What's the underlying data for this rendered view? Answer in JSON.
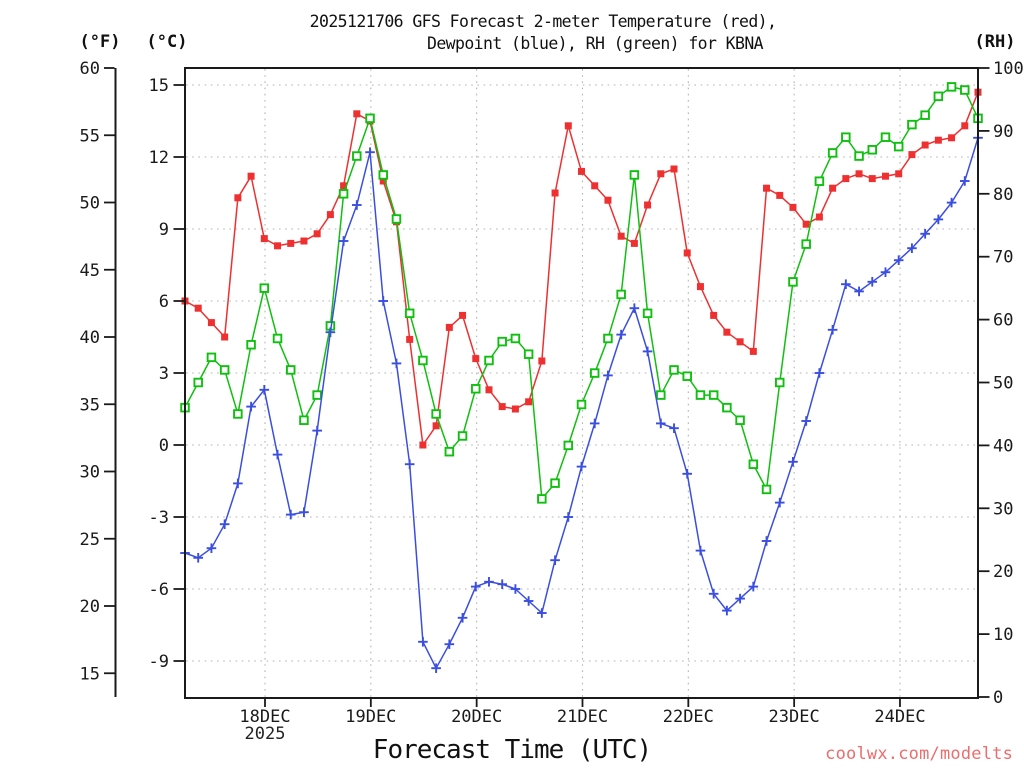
{
  "title": {
    "line1": "2025121706 GFS Forecast 2-meter Temperature (red),",
    "line2": "Dewpoint (blue), RH (green) for KBNA"
  },
  "axes": {
    "fahrenheit_label": "(°F)",
    "celsius_label": "(°C)",
    "rh_label": "(RH)",
    "x_label": "Forecast Time (UTC)",
    "x_year": "2025",
    "fahrenheit_ticks": [
      60,
      55,
      50,
      45,
      40,
      35,
      30,
      25,
      20,
      15
    ],
    "celsius_ticks": [
      15,
      12,
      9,
      6,
      3,
      0,
      -3,
      -6,
      -9
    ],
    "rh_ticks": [
      100,
      90,
      80,
      70,
      60,
      50,
      40,
      30,
      20,
      10,
      0
    ],
    "x_ticks": [
      "18DEC",
      "19DEC",
      "20DEC",
      "21DEC",
      "22DEC",
      "23DEC",
      "24DEC"
    ]
  },
  "watermark": "coolwx.com/modelts",
  "colors": {
    "temperature": "#ee3030",
    "dewpoint": "#3a4ee0",
    "rh": "#10c010",
    "grid": "#b3b3b3",
    "frame": "#1a1a1a",
    "watermark": "#ee6c6c"
  },
  "chart_data": {
    "type": "line",
    "title": "2025121706 GFS Forecast 2-meter Temperature (red), Dewpoint (blue), RH (green) for KBNA",
    "xlabel": "Forecast Time (UTC)",
    "x_tick_labels": [
      "18DEC",
      "19DEC",
      "20DEC",
      "21DEC",
      "22DEC",
      "23DEC",
      "24DEC"
    ],
    "x_year": "2025",
    "x_hours_after_init": [
      0,
      3,
      6,
      9,
      12,
      15,
      18,
      21,
      24,
      27,
      30,
      33,
      36,
      39,
      42,
      45,
      48,
      51,
      54,
      57,
      60,
      63,
      66,
      69,
      72,
      75,
      78,
      81,
      84,
      87,
      90,
      93,
      96,
      99,
      102,
      105,
      108,
      111,
      114,
      117,
      120,
      123,
      126,
      129,
      132,
      135,
      138,
      141,
      144,
      147,
      150,
      153,
      156,
      159,
      162,
      165,
      168,
      171,
      174,
      177,
      180
    ],
    "y_axis_left_celsius_range": [
      -10.5,
      15.7
    ],
    "y_axis_left_fahrenheit_range": [
      13,
      60
    ],
    "y_axis_right_rh_range": [
      0,
      100
    ],
    "grid": true,
    "legend_position": "in-title",
    "series": [
      {
        "name": "2-meter Temperature",
        "unit": "degC",
        "axis": "celsius",
        "marker": "filled-square",
        "values": [
          6.0,
          5.7,
          5.1,
          4.5,
          10.3,
          11.2,
          8.6,
          8.3,
          8.4,
          8.5,
          8.8,
          9.6,
          10.8,
          13.8,
          13.5,
          11.0,
          9.3,
          4.4,
          0.0,
          0.8,
          4.9,
          5.4,
          3.6,
          2.3,
          1.6,
          1.5,
          1.8,
          3.5,
          10.5,
          13.3,
          11.4,
          10.8,
          10.2,
          8.7,
          8.4,
          10.0,
          11.3,
          11.5,
          8.0,
          6.6,
          5.4,
          4.7,
          4.3,
          3.9,
          10.7,
          10.4,
          9.9,
          9.2,
          9.5,
          10.7,
          11.1,
          11.3,
          11.1,
          11.2,
          11.3,
          12.1,
          12.5,
          12.7,
          12.8,
          13.3,
          14.7
        ]
      },
      {
        "name": "Dewpoint",
        "unit": "degC",
        "axis": "celsius",
        "marker": "plus",
        "values": [
          -4.5,
          -4.7,
          -4.3,
          -3.3,
          -1.6,
          1.6,
          2.3,
          -0.4,
          -2.9,
          -2.8,
          0.6,
          4.7,
          8.5,
          10.0,
          12.2,
          6.0,
          3.4,
          -0.8,
          -8.2,
          -9.3,
          -8.3,
          -7.2,
          -5.9,
          -5.7,
          -5.8,
          -6.0,
          -6.5,
          -7.0,
          -4.8,
          -3.0,
          -0.9,
          0.9,
          2.9,
          4.6,
          5.7,
          3.9,
          0.9,
          0.7,
          -1.2,
          -4.4,
          -6.2,
          -6.9,
          -6.4,
          -5.9,
          -4.0,
          -2.4,
          -0.7,
          1.0,
          3.0,
          4.8,
          6.7,
          6.4,
          6.8,
          7.2,
          7.7,
          8.2,
          8.8,
          9.4,
          10.1,
          11.0,
          12.8
        ]
      },
      {
        "name": "RH",
        "unit": "%",
        "axis": "rh",
        "marker": "open-square",
        "values": [
          46,
          50,
          54,
          52,
          45,
          56,
          65,
          57,
          52,
          44,
          48,
          59,
          80,
          86,
          92,
          83,
          76,
          61,
          53.5,
          45,
          39,
          41.5,
          49,
          53.5,
          56.5,
          57,
          54.5,
          31.5,
          34,
          40,
          46.5,
          51.5,
          57,
          64,
          83,
          61,
          48,
          52,
          51,
          48,
          48,
          46,
          44,
          37,
          33,
          50,
          66,
          72,
          82,
          86.5,
          89,
          86,
          87,
          89,
          87.5,
          91,
          92.5,
          95.5,
          97,
          96.5,
          92
        ]
      }
    ]
  }
}
